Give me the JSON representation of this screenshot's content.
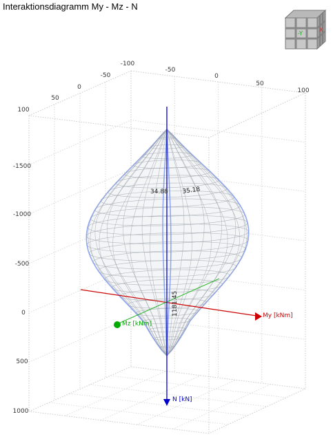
{
  "title": "Interaktionsdiagramm My - Mz - N",
  "view_cube": {
    "front_label": "-Y",
    "side_label": "X",
    "front_color": "#1aa61a",
    "side_color": "#cc3333"
  },
  "chart_data": {
    "type": "3d-surface",
    "title": "Interaktionsdiagramm My - Mz - N",
    "axes": {
      "my": {
        "label": "My [kNm]",
        "color": "#cc0000",
        "ticks": [
          "-100",
          "-50",
          "0",
          "50",
          "100"
        ]
      },
      "mz": {
        "label": "Mz [kNm]",
        "color": "#00aa00",
        "ticks": [
          "100",
          "50",
          "0",
          "-50",
          "-100"
        ]
      },
      "n": {
        "label": "N [kN]",
        "color": "#0000cc",
        "ticks": [
          "100",
          "-1500",
          "-1000",
          "-500",
          "0",
          "500",
          "1000"
        ]
      }
    },
    "value_labels": [
      "34.88",
      "35.18",
      "1181.45"
    ],
    "grid": true,
    "surface_color": "#9aa0a8",
    "meridian_color": "#6f8ef0"
  }
}
